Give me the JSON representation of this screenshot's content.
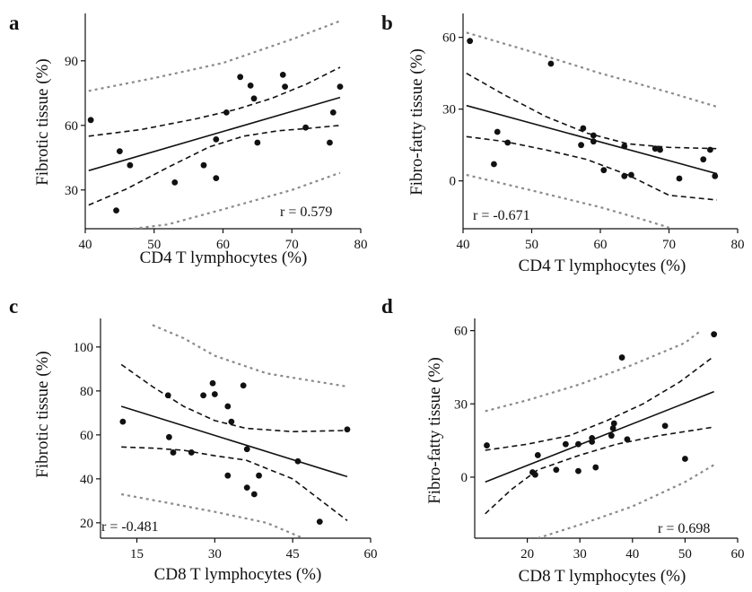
{
  "chart_data": [
    {
      "panel": "a",
      "type": "scatter",
      "xlabel": "CD4 T lymphocytes (%)",
      "ylabel": "Fibrotic tissue (%)",
      "xlim": [
        40,
        80
      ],
      "ylim": [
        12,
        112
      ],
      "xticks": [
        40,
        50,
        60,
        70,
        80
      ],
      "yticks": [
        30,
        60,
        90
      ],
      "r_text": "r = 0.579",
      "r_pos": "bottom-right",
      "points": [
        [
          40.8,
          62.5
        ],
        [
          44.5,
          20.5
        ],
        [
          45,
          48
        ],
        [
          46.5,
          41.5
        ],
        [
          53,
          33.5
        ],
        [
          57.2,
          41.5
        ],
        [
          59,
          35.5
        ],
        [
          59,
          53.5
        ],
        [
          60.5,
          66
        ],
        [
          62.5,
          82.5
        ],
        [
          64,
          78.5
        ],
        [
          64.5,
          72.5
        ],
        [
          65,
          52
        ],
        [
          68.7,
          83.5
        ],
        [
          69,
          78
        ],
        [
          72,
          59
        ],
        [
          75.5,
          52
        ],
        [
          76,
          66
        ],
        [
          77,
          78
        ]
      ],
      "fit": [
        [
          40.5,
          39
        ],
        [
          77,
          73
        ]
      ],
      "ci_upper": [
        [
          40.5,
          55
        ],
        [
          48,
          58
        ],
        [
          56,
          63
        ],
        [
          62,
          67.5
        ],
        [
          67,
          72.5
        ],
        [
          72,
          79
        ],
        [
          77,
          87
        ]
      ],
      "ci_lower": [
        [
          40.5,
          23
        ],
        [
          46,
          30.5
        ],
        [
          52,
          40.5
        ],
        [
          58,
          50
        ],
        [
          63,
          55
        ],
        [
          68,
          57.5
        ],
        [
          72,
          58.5
        ],
        [
          77,
          60
        ]
      ],
      "pi_upper": [
        [
          40.5,
          76
        ],
        [
          50,
          82
        ],
        [
          60,
          89
        ],
        [
          70,
          100
        ],
        [
          77,
          108.5
        ]
      ],
      "pi_lower": [
        [
          47,
          12
        ],
        [
          52,
          14
        ],
        [
          60,
          21
        ],
        [
          70,
          30
        ],
        [
          77,
          38
        ]
      ]
    },
    {
      "panel": "b",
      "type": "scatter",
      "xlabel": "CD4 T lymphocytes (%)",
      "ylabel": "Fibro-fatty tissue (%)",
      "xlim": [
        40,
        80
      ],
      "ylim": [
        -20,
        70
      ],
      "xticks": [
        40,
        50,
        60,
        70,
        80
      ],
      "yticks": [
        0,
        30,
        60
      ],
      "r_text": "r = -0.671",
      "r_pos": "bottom-left",
      "points": [
        [
          41,
          58.5
        ],
        [
          44.5,
          7
        ],
        [
          45,
          20.5
        ],
        [
          46.5,
          16
        ],
        [
          52.8,
          49
        ],
        [
          57.2,
          15
        ],
        [
          57.5,
          22
        ],
        [
          59,
          19
        ],
        [
          59,
          16.5
        ],
        [
          60.5,
          4.5
        ],
        [
          63.5,
          14.5
        ],
        [
          63.5,
          2
        ],
        [
          64.5,
          2.5
        ],
        [
          68,
          13.5
        ],
        [
          68.7,
          13
        ],
        [
          71.5,
          1
        ],
        [
          75,
          9
        ],
        [
          76,
          13
        ],
        [
          76.7,
          2
        ]
      ],
      "fit": [
        [
          40.5,
          31.5
        ],
        [
          77,
          3
        ]
      ],
      "ci_upper": [
        [
          40.5,
          45
        ],
        [
          46,
          36
        ],
        [
          52,
          27
        ],
        [
          58,
          20
        ],
        [
          64,
          15.5
        ],
        [
          70,
          14
        ],
        [
          77,
          13.5
        ]
      ],
      "ci_lower": [
        [
          40.5,
          18.5
        ],
        [
          46,
          16.5
        ],
        [
          52,
          13
        ],
        [
          58,
          9
        ],
        [
          64,
          2.5
        ],
        [
          70,
          -6
        ],
        [
          77,
          -8
        ]
      ],
      "pi_upper": [
        [
          40.5,
          62
        ],
        [
          50,
          54
        ],
        [
          60,
          45
        ],
        [
          70,
          37
        ],
        [
          77,
          31
        ]
      ],
      "pi_lower": [
        [
          40.5,
          2.5
        ],
        [
          50,
          -4
        ],
        [
          60,
          -11
        ],
        [
          66,
          -16
        ],
        [
          70,
          -19.5
        ]
      ]
    },
    {
      "panel": "c",
      "type": "scatter",
      "xlabel": "CD8 T lymphocytes (%)",
      "ylabel": "Fibrotic tissue (%)",
      "xlim": [
        8,
        60
      ],
      "ylim": [
        13,
        113
      ],
      "xticks": [
        15,
        30,
        45,
        60
      ],
      "yticks": [
        20,
        40,
        60,
        80,
        100
      ],
      "r_text": "r = -0.481",
      "r_pos": "bottom-left",
      "points": [
        [
          12.3,
          66
        ],
        [
          21,
          78
        ],
        [
          21.2,
          59
        ],
        [
          22,
          52
        ],
        [
          25.5,
          52
        ],
        [
          27.8,
          78
        ],
        [
          29.6,
          83.5
        ],
        [
          30,
          78.5
        ],
        [
          32.5,
          73
        ],
        [
          33.2,
          66
        ],
        [
          35.5,
          82.5
        ],
        [
          36.2,
          53.5
        ],
        [
          36.2,
          36
        ],
        [
          32.5,
          41.5
        ],
        [
          37.6,
          33
        ],
        [
          38.5,
          41.5
        ],
        [
          46,
          48
        ],
        [
          50.2,
          20.5
        ],
        [
          55.5,
          62.5
        ]
      ],
      "fit": [
        [
          12,
          73
        ],
        [
          55.5,
          41
        ]
      ],
      "ci_upper": [
        [
          12,
          92
        ],
        [
          18,
          82
        ],
        [
          24,
          73
        ],
        [
          30,
          66.5
        ],
        [
          36,
          63
        ],
        [
          45,
          61.5
        ],
        [
          55.5,
          62
        ]
      ],
      "ci_lower": [
        [
          12,
          54.5
        ],
        [
          18,
          54
        ],
        [
          24,
          53
        ],
        [
          30,
          50.5
        ],
        [
          36,
          48.5
        ],
        [
          45,
          40
        ],
        [
          55.5,
          21
        ]
      ],
      "pi_upper": [
        [
          18,
          110
        ],
        [
          24,
          104
        ],
        [
          30,
          96
        ],
        [
          40,
          88
        ],
        [
          55.5,
          82
        ]
      ],
      "pi_lower": [
        [
          12,
          33
        ],
        [
          20,
          29.5
        ],
        [
          30,
          25
        ],
        [
          40,
          20
        ],
        [
          47,
          13
        ]
      ]
    },
    {
      "panel": "d",
      "type": "scatter",
      "xlabel": "CD8 T lymphocytes (%)",
      "ylabel": "Fibro-fatty tissue (%)",
      "xlim": [
        10,
        60
      ],
      "ylim": [
        -25,
        65
      ],
      "xticks": [
        20,
        30,
        40,
        50,
        60
      ],
      "yticks": [
        0,
        30,
        60
      ],
      "r_text": "r = 0.698",
      "r_pos": "bottom-right",
      "points": [
        [
          12.3,
          13
        ],
        [
          21,
          2
        ],
        [
          21.5,
          1
        ],
        [
          22,
          9
        ],
        [
          25.5,
          3
        ],
        [
          27.3,
          13.5
        ],
        [
          29.7,
          2.5
        ],
        [
          29.7,
          13.5
        ],
        [
          32.3,
          14.5
        ],
        [
          32.3,
          16
        ],
        [
          33,
          4
        ],
        [
          36,
          17
        ],
        [
          36.3,
          20
        ],
        [
          36.5,
          22
        ],
        [
          38,
          49
        ],
        [
          39,
          15.5
        ],
        [
          46.2,
          21
        ],
        [
          50,
          7.5
        ],
        [
          55.5,
          58.5
        ]
      ],
      "fit": [
        [
          12,
          -2
        ],
        [
          55.5,
          35
        ]
      ],
      "ci_upper": [
        [
          12,
          11
        ],
        [
          20,
          13.5
        ],
        [
          28,
          17
        ],
        [
          35,
          23
        ],
        [
          42,
          30
        ],
        [
          49,
          39
        ],
        [
          55.5,
          49.5
        ]
      ],
      "ci_lower": [
        [
          12,
          -15
        ],
        [
          17,
          -5
        ],
        [
          22,
          3
        ],
        [
          30,
          9
        ],
        [
          37,
          13.5
        ],
        [
          45,
          17
        ],
        [
          55.5,
          20.5
        ]
      ],
      "pi_upper": [
        [
          12,
          27
        ],
        [
          20,
          31.5
        ],
        [
          30,
          38
        ],
        [
          40,
          46
        ],
        [
          50,
          55
        ],
        [
          53,
          60
        ]
      ],
      "pi_lower": [
        [
          22,
          -25
        ],
        [
          30,
          -19.5
        ],
        [
          40,
          -12
        ],
        [
          50,
          -2
        ],
        [
          55.5,
          5
        ]
      ]
    }
  ]
}
